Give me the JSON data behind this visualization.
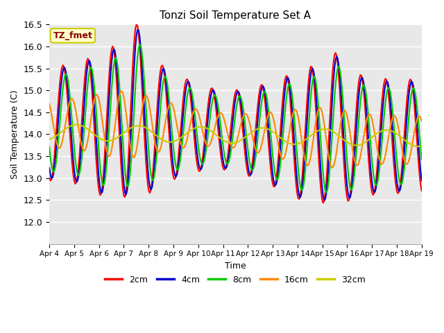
{
  "title": "Tonzi Soil Temperature Set A",
  "xlabel": "Time",
  "ylabel": "Soil Temperature (C)",
  "ylim": [
    11.5,
    16.5
  ],
  "yticks": [
    12.0,
    12.5,
    13.0,
    13.5,
    14.0,
    14.5,
    15.0,
    15.5,
    16.0,
    16.5
  ],
  "xtick_labels": [
    "Apr 4",
    "Apr 5",
    "Apr 6",
    "Apr 7",
    "Apr 8",
    "Apr 9",
    "Apr 10",
    "Apr 11",
    "Apr 12",
    "Apr 13",
    "Apr 14",
    "Apr 15",
    "Apr 16",
    "Apr 17",
    "Apr 18",
    "Apr 19"
  ],
  "legend_label": "TZ_fmet",
  "series_labels": [
    "2cm",
    "4cm",
    "8cm",
    "16cm",
    "32cm"
  ],
  "series_colors": [
    "#ff0000",
    "#0000cc",
    "#00cc00",
    "#ff8800",
    "#cccc00"
  ],
  "line_width": 1.5,
  "n_days": 15,
  "pts_per_day": 24
}
